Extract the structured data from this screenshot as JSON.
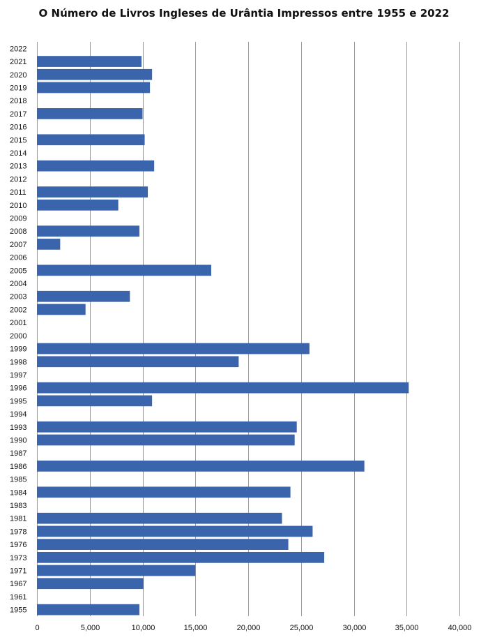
{
  "chart_data": {
    "type": "bar",
    "orientation": "horizontal",
    "title": "O Número de Livros Ingleses de Urântia Impressos entre 1955 e 2022",
    "xlabel": "",
    "ylabel": "",
    "xlim": [
      0,
      40000
    ],
    "x_ticks": [
      0,
      5000,
      10000,
      15000,
      20000,
      25000,
      30000,
      35000,
      40000
    ],
    "x_tick_labels": [
      "0",
      "5,000",
      "10,000",
      "15,000",
      "20,000",
      "25,000",
      "30,000",
      "35,000",
      "40,000"
    ],
    "grid": "vertical",
    "legend": "none",
    "bar_color": "#3A64AC",
    "categories": [
      "2022",
      "2021",
      "2020",
      "2019",
      "2018",
      "2017",
      "2016",
      "2015",
      "2014",
      "2013",
      "2012",
      "2011",
      "2010",
      "2009",
      "2008",
      "2007",
      "2006",
      "2005",
      "2004",
      "2003",
      "2002",
      "2001",
      "2000",
      "1999",
      "1998",
      "1997",
      "1996",
      "1995",
      "1994",
      "1993",
      "1990",
      "1987",
      "1986",
      "1985",
      "1984",
      "1983",
      "1981",
      "1978",
      "1976",
      "1973",
      "1971",
      "1967",
      "1961",
      "1955"
    ],
    "values": [
      0,
      9900,
      10900,
      10700,
      0,
      10000,
      0,
      10200,
      0,
      11100,
      0,
      10500,
      7700,
      0,
      9700,
      2200,
      0,
      16500,
      0,
      8800,
      4600,
      0,
      0,
      25800,
      19100,
      0,
      35200,
      10900,
      0,
      24600,
      24400,
      0,
      31000,
      0,
      24000,
      0,
      23200,
      26100,
      23800,
      27200,
      15000,
      10100,
      0,
      9700
    ]
  }
}
